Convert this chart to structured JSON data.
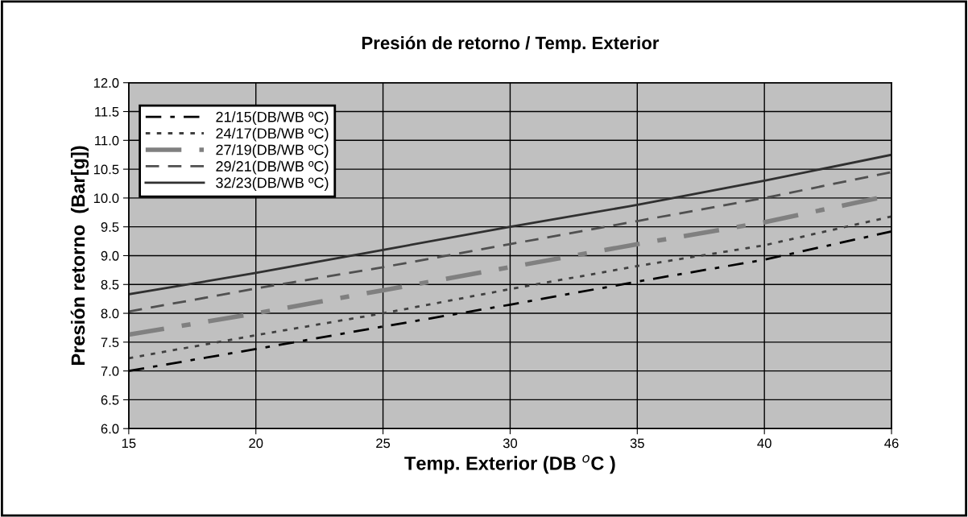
{
  "chart_data": {
    "type": "line",
    "title": "Presión de retorno / Temp. Exterior",
    "xlabel": "Temp. Exterior (DB $^{o}$C )",
    "ylabel": "Presión retorno  (Bar[g])",
    "categories": [
      "15",
      "20",
      "25",
      "30",
      "35",
      "40",
      "46"
    ],
    "series": [
      {
        "name": "21/15(DB/WB ºC)",
        "color": "#000000",
        "line_style": "dashed",
        "values": [
          7.0,
          7.38,
          7.77,
          8.15,
          8.55,
          8.93,
          9.42
        ]
      },
      {
        "name": "24/17(DB/WB ºC)",
        "color": "#404040",
        "line_style": "dotted",
        "values": [
          7.22,
          7.62,
          8.0,
          8.42,
          8.82,
          9.18,
          9.68
        ]
      },
      {
        "name": "27/19(DB/WB ºC)",
        "color": "#808080",
        "line_style": "dashed",
        "values": [
          7.63,
          8.0,
          8.4,
          8.8,
          9.2,
          9.58,
          10.05
        ]
      },
      {
        "name": "29/21(DB/WB ºC)",
        "color": "#505050",
        "line_style": "dashed",
        "values": [
          8.03,
          8.43,
          8.8,
          9.2,
          9.6,
          10.0,
          10.45
        ]
      },
      {
        "name": "32/23(DB/WB ºC)",
        "color": "#303030",
        "line_style": "solid",
        "values": [
          8.33,
          8.7,
          9.1,
          9.5,
          9.88,
          10.3,
          10.75
        ]
      }
    ],
    "ylim": [
      6.0,
      12.0
    ],
    "yticks": [
      {
        "value": 6,
        "label": "6.0"
      },
      {
        "value": 6.5,
        "label": "6.5"
      },
      {
        "value": 7,
        "label": "7.0"
      },
      {
        "value": 7.5,
        "label": "7.5"
      },
      {
        "value": 8,
        "label": "8.0"
      },
      {
        "value": 8.5,
        "label": "8.5"
      },
      {
        "value": 9,
        "label": "9.0"
      },
      {
        "value": 9.5,
        "label": "9.5"
      },
      {
        "value": 10,
        "label": "10.0"
      },
      {
        "value": 10.5,
        "label": "10.5"
      },
      {
        "value": 11,
        "label": "11.0"
      },
      {
        "value": 11.5,
        "label": "11.5"
      },
      {
        "value": 12,
        "label": "12.0"
      }
    ],
    "grid": true,
    "legend": "top left",
    "marker": "none"
  }
}
